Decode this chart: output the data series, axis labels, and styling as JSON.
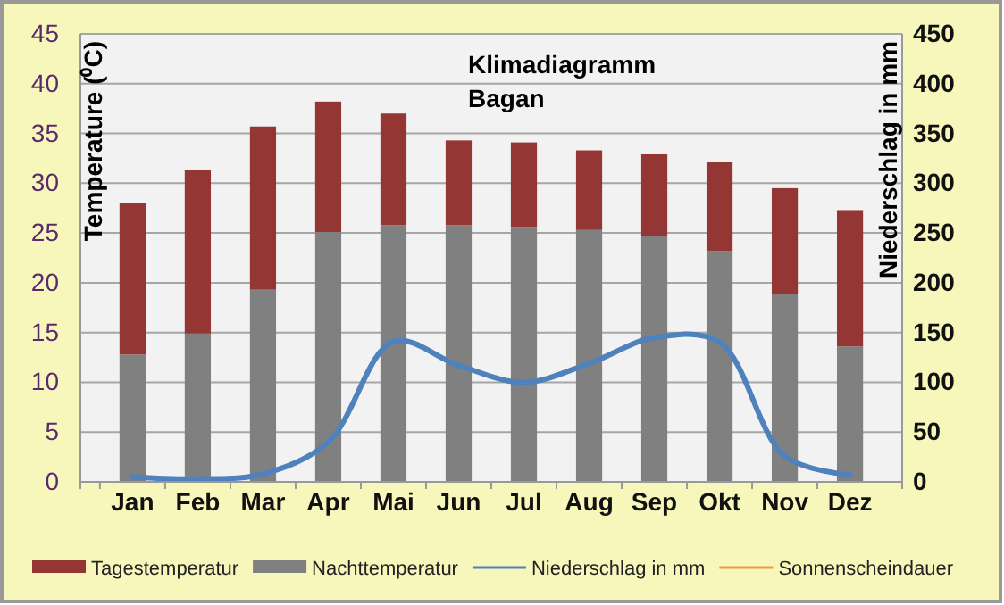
{
  "chart_data": {
    "type": "bar",
    "title": "Klimadiagramm",
    "subtitle": "Bagan",
    "ylabel": "Temperature (⁰C)",
    "y2label": "Niederschlag in mm",
    "categories": [
      "Jan",
      "Feb",
      "Mar",
      "Apr",
      "Mai",
      "Jun",
      "Jul",
      "Aug",
      "Sep",
      "Okt",
      "Nov",
      "Dez"
    ],
    "stacked": true,
    "series": [
      {
        "name": "Nachttemperatur",
        "color": "#808080",
        "values": [
          12.8,
          14.9,
          19.3,
          25.1,
          25.8,
          25.8,
          25.6,
          25.3,
          24.7,
          23.2,
          18.9,
          13.6
        ]
      },
      {
        "name": "Tagestemperatur",
        "color": "#943634",
        "values": [
          15.2,
          16.4,
          16.4,
          13.1,
          11.2,
          8.5,
          8.5,
          8.0,
          8.2,
          8.9,
          10.6,
          13.7
        ]
      },
      {
        "name": "Niederschlag in mm",
        "type": "line",
        "axis": "y2",
        "color": "#4f81bd",
        "values": [
          5,
          3,
          8,
          40,
          141,
          117,
          100,
          119,
          145,
          140,
          26,
          7
        ]
      },
      {
        "name": "Sonnenscheindauer",
        "type": "line",
        "axis": "y2",
        "color": "#f79646",
        "values": [
          null,
          null,
          null,
          null,
          null,
          null,
          null,
          null,
          null,
          null,
          null,
          null
        ]
      }
    ],
    "ylim": [
      0,
      45
    ],
    "yticks": [
      0,
      5,
      10,
      15,
      20,
      25,
      30,
      35,
      40,
      45
    ],
    "y2lim": [
      0,
      450
    ],
    "y2ticks": [
      0,
      50,
      100,
      150,
      200,
      250,
      300,
      350,
      400,
      450
    ],
    "grid": "y",
    "legend": "bottom",
    "marker": "none",
    "line_style": "solid"
  }
}
